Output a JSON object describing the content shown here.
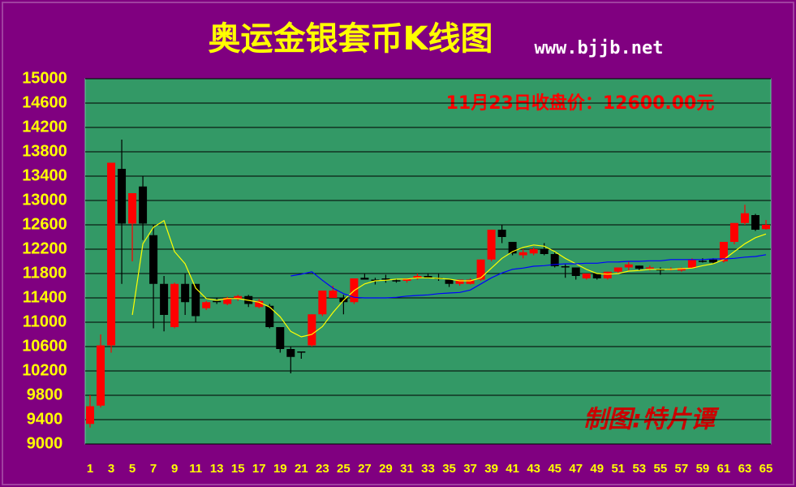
{
  "chart_data": {
    "type": "candlestick",
    "title": "奥运金银套币K线图",
    "subtitle": "www.bjjb.net",
    "annotations": [
      "11月23日收盘价：12600.00元",
      "制图:特片谭"
    ],
    "categories": [
      "1",
      null,
      "3",
      null,
      "5",
      null,
      "7",
      null,
      "9",
      null,
      "11",
      null,
      "13",
      null,
      "15",
      null,
      "17",
      null,
      "19",
      null,
      "21",
      null,
      "23",
      null,
      "25",
      null,
      "27",
      null,
      "29",
      null,
      "31",
      null,
      "33",
      null,
      "35",
      null,
      "37",
      null,
      "39",
      null,
      "41",
      null,
      "43",
      null,
      "45",
      null,
      "47",
      null,
      "49",
      null,
      "51",
      null,
      "53",
      null,
      "55",
      null,
      "57",
      null,
      "59",
      null,
      "61",
      null,
      "63",
      null,
      "65"
    ],
    "open": [
      9330,
      9630,
      10620,
      13520,
      12620,
      13230,
      12430,
      11630,
      10920,
      11630,
      11630,
      11230,
      11350,
      11300,
      11380,
      11430,
      11250,
      11270,
      10920,
      10560,
      10520,
      10620,
      11130,
      11400,
      11400,
      11330,
      11730,
      11700,
      11720,
      11690,
      11680,
      11720,
      11760,
      11730,
      11700,
      11630,
      11630,
      11700,
      12030,
      12520,
      12320,
      12100,
      12130,
      12200,
      12120,
      11920,
      11900,
      11720,
      11800,
      11720,
      11830,
      11900,
      11930,
      11880,
      11870,
      11860,
      11850,
      11890,
      12010,
      12030,
      12000,
      12320,
      12630,
      12760,
      12530
    ],
    "high": [
      9800,
      10800,
      13620,
      14000,
      13120,
      13400,
      12600,
      11760,
      11650,
      11800,
      11630,
      11350,
      11400,
      11420,
      11450,
      11450,
      11380,
      11300,
      10920,
      10600,
      10520,
      11130,
      11520,
      11600,
      11450,
      11720,
      11800,
      11730,
      11780,
      11720,
      11720,
      11800,
      11800,
      11800,
      11700,
      11700,
      11720,
      12030,
      12520,
      12600,
      12320,
      12200,
      12230,
      12300,
      12150,
      11950,
      11900,
      11800,
      11800,
      11830,
      11900,
      12000,
      11930,
      11930,
      11900,
      11900,
      11900,
      12050,
      12050,
      12050,
      12320,
      12630,
      12930,
      12780,
      12680
    ],
    "low": [
      9270,
      9600,
      10500,
      11630,
      12000,
      12350,
      10900,
      10850,
      10900,
      11120,
      11000,
      11200,
      11300,
      11280,
      11350,
      11250,
      11230,
      10900,
      10500,
      10160,
      10400,
      10600,
      11100,
      11400,
      11130,
      11300,
      11700,
      11620,
      11650,
      11650,
      11650,
      11700,
      11720,
      11680,
      11580,
      11600,
      11620,
      11680,
      12000,
      12300,
      12100,
      12050,
      12100,
      12100,
      11900,
      11730,
      11700,
      11700,
      11700,
      11700,
      11800,
      11850,
      11850,
      11850,
      11780,
      11850,
      11830,
      11880,
      11980,
      11950,
      11980,
      12280,
      12600,
      12500,
      12520
    ],
    "close": [
      9620,
      10620,
      13620,
      12620,
      13120,
      12620,
      11630,
      11120,
      11630,
      11330,
      11100,
      11330,
      11330,
      11400,
      11430,
      11300,
      11350,
      10920,
      10560,
      10430,
      10500,
      11130,
      11520,
      11520,
      11330,
      11720,
      11700,
      11690,
      11700,
      11670,
      11720,
      11760,
      11730,
      11720,
      11630,
      11700,
      11700,
      12030,
      12520,
      12400,
      12130,
      12150,
      12200,
      12120,
      11920,
      11900,
      11760,
      11800,
      11720,
      11830,
      11900,
      11950,
      11880,
      11900,
      11860,
      11880,
      11890,
      12030,
      12000,
      11980,
      12320,
      12630,
      12790,
      12520,
      12600
    ],
    "up_color": "#ff0000",
    "down_color": "#000000",
    "lines": [
      {
        "color": "#ffff00",
        "values": [
          null,
          null,
          null,
          null,
          11120,
          12290,
          12560,
          12670,
          12160,
          11960,
          11560,
          11390,
          11360,
          11390,
          11390,
          11360,
          11330,
          11250,
          11090,
          10850,
          10760,
          10800,
          10930,
          11160,
          11360,
          11520,
          11630,
          11680,
          11690,
          11710,
          11710,
          11730,
          11730,
          11720,
          11710,
          11680,
          11680,
          11730,
          11890,
          12050,
          12160,
          12230,
          12270,
          12250,
          12160,
          12050,
          11960,
          11870,
          11800,
          11790,
          11800,
          11840,
          11850,
          11870,
          11870,
          11870,
          11880,
          11890,
          11930,
          11960,
          12030,
          12160,
          12290,
          12390,
          12450
        ]
      },
      {
        "color": "#0000ff",
        "values": [
          null,
          null,
          null,
          null,
          null,
          null,
          null,
          null,
          null,
          null,
          null,
          null,
          null,
          null,
          null,
          null,
          null,
          null,
          null,
          11760,
          11790,
          11830,
          11690,
          11560,
          11470,
          11410,
          11400,
          11400,
          11400,
          11410,
          11430,
          11440,
          11450,
          11470,
          11480,
          11490,
          11530,
          11630,
          11730,
          11810,
          11870,
          11890,
          11920,
          11930,
          11950,
          11960,
          11960,
          11970,
          11970,
          11990,
          11990,
          12000,
          12000,
          12010,
          12010,
          12030,
          12030,
          12030,
          12030,
          12040,
          12040,
          12050,
          12070,
          12080,
          12110
        ]
      }
    ],
    "ylim": [
      9000,
      15000
    ],
    "yticks": [
      9000,
      9400,
      9800,
      10200,
      10600,
      11000,
      11400,
      11800,
      12200,
      12600,
      13000,
      13400,
      13800,
      14200,
      14600,
      15000
    ],
    "grid": true
  }
}
